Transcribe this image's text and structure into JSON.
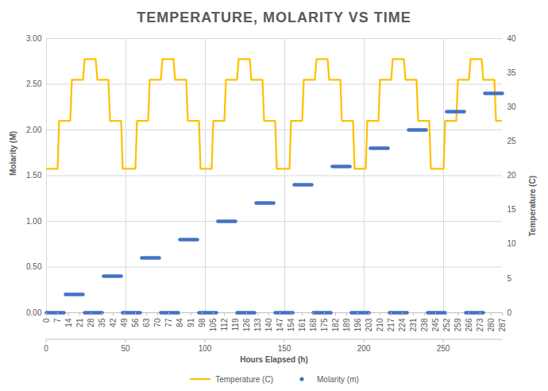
{
  "chart_data": {
    "type": "line",
    "title": "TEMPERATURE, MOLARITY VS TIME",
    "x_label": "Hours Elapsed (h)",
    "y_label": "Molarity (M)",
    "y2_label": "Temperature (C)",
    "x": [
      0,
      1,
      2,
      3,
      4,
      5,
      6,
      7,
      8,
      9,
      10,
      11,
      12,
      13,
      14,
      15,
      16,
      17,
      18,
      19,
      20,
      21,
      22,
      23,
      24,
      25,
      26,
      27,
      28,
      29,
      30,
      31,
      32,
      33,
      34,
      35,
      36,
      37,
      38,
      39,
      40,
      41,
      42,
      43,
      44,
      45,
      46,
      47,
      48,
      49,
      50,
      51,
      52,
      53,
      54,
      55,
      56,
      57,
      58,
      59,
      60,
      61,
      62,
      63,
      64,
      65,
      66,
      67,
      68,
      69,
      70,
      71,
      72,
      73,
      74,
      75,
      76,
      77,
      78,
      79,
      80,
      81,
      82,
      83,
      84,
      85,
      86,
      87,
      88,
      89,
      90,
      91,
      92,
      93,
      94,
      95,
      96,
      97,
      98,
      99,
      100,
      101,
      102,
      103,
      104,
      105,
      106,
      107,
      108,
      109,
      110,
      111,
      112,
      113,
      114,
      115,
      116,
      117,
      118,
      119,
      120,
      121,
      122,
      123,
      124,
      125,
      126,
      127,
      128,
      129,
      130,
      131,
      132,
      133,
      134,
      135,
      136,
      137,
      138,
      139,
      140,
      141,
      142,
      143,
      144,
      145,
      146,
      147,
      148,
      149,
      150,
      151,
      152,
      153,
      154,
      155,
      156,
      157,
      158,
      159,
      160,
      161,
      162,
      163,
      164,
      165,
      166,
      167,
      168,
      169,
      170,
      171,
      172,
      173,
      174,
      175,
      176,
      177,
      178,
      179,
      180,
      181,
      182,
      183,
      184,
      185,
      186,
      187,
      188,
      189,
      190,
      191,
      192,
      193,
      194,
      195,
      196,
      197,
      198,
      199,
      200,
      201,
      202,
      203,
      204,
      205,
      206,
      207,
      208,
      209,
      210,
      211,
      212,
      213,
      214,
      215,
      216,
      217,
      218,
      219,
      220,
      221,
      222,
      223,
      224,
      225,
      226,
      227,
      228,
      229,
      230,
      231,
      232,
      233,
      234,
      235,
      236,
      237,
      238,
      239,
      240,
      241,
      242,
      243,
      244,
      245,
      246,
      247,
      248,
      249,
      250,
      251,
      252,
      253,
      254,
      255,
      256,
      257,
      258,
      259,
      260,
      261,
      262,
      263,
      264,
      265,
      266,
      267,
      268,
      269,
      270,
      271,
      272,
      273,
      274,
      275,
      276,
      277,
      278,
      279,
      280,
      281,
      282,
      283,
      284,
      285,
      286,
      287
    ],
    "series": [
      {
        "name": "Temperature (C)",
        "type": "line",
        "color": "#FFC000",
        "axis": "y2",
        "values": [
          21,
          21,
          21,
          21,
          21,
          21,
          21,
          21,
          28,
          28,
          28,
          28,
          28,
          28,
          28,
          28,
          34,
          34,
          34,
          34,
          34,
          34,
          34,
          34,
          37,
          37,
          37,
          37,
          37,
          37,
          37,
          37,
          34,
          34,
          34,
          34,
          34,
          34,
          34,
          34,
          28,
          28,
          28,
          28,
          28,
          28,
          28,
          28,
          21,
          21,
          21,
          21,
          21,
          21,
          21,
          21,
          21,
          28,
          28,
          28,
          28,
          28,
          28,
          28,
          28,
          34,
          34,
          34,
          34,
          34,
          34,
          34,
          34,
          37,
          37,
          37,
          37,
          37,
          37,
          37,
          37,
          34,
          34,
          34,
          34,
          34,
          34,
          34,
          34,
          28,
          28,
          28,
          28,
          28,
          28,
          28,
          28,
          21,
          21,
          21,
          21,
          21,
          21,
          21,
          21,
          28,
          28,
          28,
          28,
          28,
          28,
          28,
          28,
          34,
          34,
          34,
          34,
          34,
          34,
          34,
          34,
          37,
          37,
          37,
          37,
          37,
          37,
          37,
          37,
          34,
          34,
          34,
          34,
          34,
          34,
          34,
          34,
          28,
          28,
          28,
          28,
          28,
          28,
          28,
          28,
          21,
          21,
          21,
          21,
          21,
          21,
          21,
          21,
          21,
          28,
          28,
          28,
          28,
          28,
          28,
          28,
          28,
          34,
          34,
          34,
          34,
          34,
          34,
          34,
          34,
          37,
          37,
          37,
          37,
          37,
          37,
          37,
          37,
          34,
          34,
          34,
          34,
          34,
          34,
          34,
          34,
          28,
          28,
          28,
          28,
          28,
          28,
          28,
          28,
          21,
          21,
          21,
          21,
          21,
          21,
          21,
          21,
          28,
          28,
          28,
          28,
          28,
          28,
          28,
          28,
          34,
          34,
          34,
          34,
          34,
          34,
          34,
          34,
          37,
          37,
          37,
          37,
          37,
          37,
          37,
          37,
          34,
          34,
          34,
          34,
          34,
          34,
          34,
          34,
          28,
          28,
          28,
          28,
          28,
          28,
          28,
          28,
          21,
          21,
          21,
          21,
          21,
          21,
          21,
          21,
          21,
          28,
          28,
          28,
          28,
          28,
          28,
          28,
          28,
          34,
          34,
          34,
          34,
          34,
          34,
          34,
          34,
          37,
          37,
          37,
          37,
          37,
          37,
          37,
          37,
          34,
          34,
          34,
          34,
          34,
          34,
          34,
          34,
          28,
          28,
          28,
          28,
          28
        ]
      },
      {
        "name": "Molarity (m)",
        "type": "scatter",
        "marker": "circle",
        "color": "#4472C4",
        "values": [
          0,
          0,
          0,
          0,
          0,
          0,
          0,
          0,
          0,
          0,
          0,
          0,
          0.2,
          0.2,
          0.2,
          0.2,
          0.2,
          0.2,
          0.2,
          0.2,
          0.2,
          0.2,
          0.2,
          0.2,
          0,
          0,
          0,
          0,
          0,
          0,
          0,
          0,
          0,
          0,
          0,
          0,
          0.4,
          0.4,
          0.4,
          0.4,
          0.4,
          0.4,
          0.4,
          0.4,
          0.4,
          0.4,
          0.4,
          0.4,
          0,
          0,
          0,
          0,
          0,
          0,
          0,
          0,
          0,
          0,
          0,
          0,
          0.6,
          0.6,
          0.6,
          0.6,
          0.6,
          0.6,
          0.6,
          0.6,
          0.6,
          0.6,
          0.6,
          0.6,
          0,
          0,
          0,
          0,
          0,
          0,
          0,
          0,
          0,
          0,
          0,
          0,
          0.8,
          0.8,
          0.8,
          0.8,
          0.8,
          0.8,
          0.8,
          0.8,
          0.8,
          0.8,
          0.8,
          0.8,
          0,
          0,
          0,
          0,
          0,
          0,
          0,
          0,
          0,
          0,
          0,
          0,
          1,
          1,
          1,
          1,
          1,
          1,
          1,
          1,
          1,
          1,
          1,
          1,
          0,
          0,
          0,
          0,
          0,
          0,
          0,
          0,
          0,
          0,
          0,
          0,
          1.2,
          1.2,
          1.2,
          1.2,
          1.2,
          1.2,
          1.2,
          1.2,
          1.2,
          1.2,
          1.2,
          1.2,
          0,
          0,
          0,
          0,
          0,
          0,
          0,
          0,
          0,
          0,
          0,
          0,
          1.4,
          1.4,
          1.4,
          1.4,
          1.4,
          1.4,
          1.4,
          1.4,
          1.4,
          1.4,
          1.4,
          1.4,
          0,
          0,
          0,
          0,
          0,
          0,
          0,
          0,
          0,
          0,
          0,
          0,
          1.6,
          1.6,
          1.6,
          1.6,
          1.6,
          1.6,
          1.6,
          1.6,
          1.6,
          1.6,
          1.6,
          1.6,
          0,
          0,
          0,
          0,
          0,
          0,
          0,
          0,
          0,
          0,
          0,
          0,
          1.8,
          1.8,
          1.8,
          1.8,
          1.8,
          1.8,
          1.8,
          1.8,
          1.8,
          1.8,
          1.8,
          1.8,
          0,
          0,
          0,
          0,
          0,
          0,
          0,
          0,
          0,
          0,
          0,
          0,
          2,
          2,
          2,
          2,
          2,
          2,
          2,
          2,
          2,
          2,
          2,
          2,
          0,
          0,
          0,
          0,
          0,
          0,
          0,
          0,
          0,
          0,
          0,
          0,
          2.2,
          2.2,
          2.2,
          2.2,
          2.2,
          2.2,
          2.2,
          2.2,
          2.2,
          2.2,
          2.2,
          2.2,
          0,
          0,
          0,
          0,
          0,
          0,
          0,
          0,
          0,
          0,
          0,
          0,
          2.4,
          2.4,
          2.4,
          2.4,
          2.4,
          2.4,
          2.4,
          2.4,
          2.4,
          2.4,
          2.4,
          2.4
        ]
      }
    ],
    "xlim": [
      0,
      287
    ],
    "xticks": [
      0,
      7,
      14,
      21,
      28,
      35,
      42,
      49,
      56,
      63,
      70,
      77,
      84,
      91,
      98,
      105,
      112,
      119,
      126,
      133,
      140,
      147,
      154,
      161,
      168,
      175,
      182,
      189,
      196,
      203,
      210,
      217,
      224,
      231,
      238,
      245,
      252,
      259,
      266,
      273,
      280,
      287
    ],
    "x2lim": [
      0,
      287
    ],
    "x2ticks": [
      0,
      50,
      100,
      150,
      200,
      250
    ],
    "ylim": [
      0,
      3
    ],
    "yticks": [
      {
        "value": 0,
        "label": "0.00"
      },
      {
        "value": 0.5,
        "label": "0.50"
      },
      {
        "value": 1,
        "label": "1.00"
      },
      {
        "value": 1.5,
        "label": "1.50"
      },
      {
        "value": 2,
        "label": "2.00"
      },
      {
        "value": 2.5,
        "label": "2.50"
      },
      {
        "value": 3,
        "label": "3.00"
      }
    ],
    "y2lim": [
      0,
      40
    ],
    "y2ticks": [
      0,
      5,
      10,
      15,
      20,
      25,
      30,
      35,
      40
    ],
    "grid": true,
    "legend": "bottom"
  }
}
